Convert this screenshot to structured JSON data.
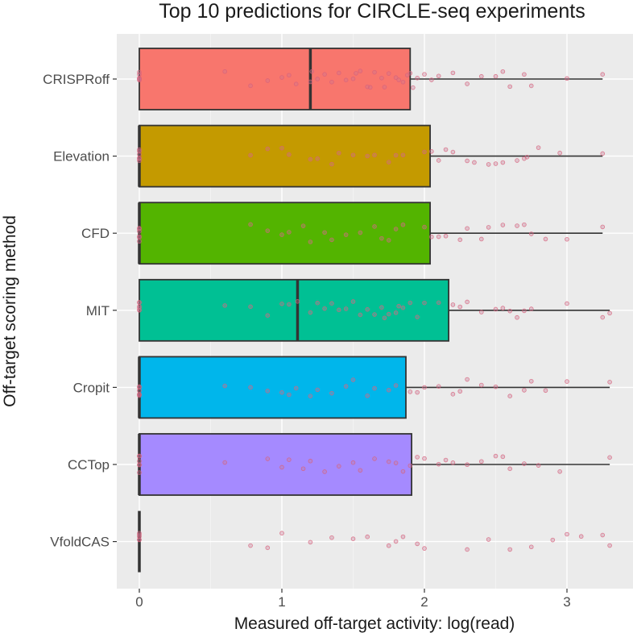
{
  "chart_data": {
    "type": "boxplot",
    "title": "Top 10 predictions for CIRCLE-seq experiments",
    "xlabel": "Measured off-target activity: log(read)",
    "ylabel": "Off-target scoring method",
    "xlim": [
      -0.15,
      3.45
    ],
    "x_ticks": [
      0,
      1,
      2,
      3
    ],
    "x_tick_labels": [
      "0",
      "1",
      "2",
      "3"
    ],
    "grid": true,
    "series": [
      {
        "name": "CRISPRoff",
        "color": "#f8766d",
        "q1": 0,
        "median": 1.2,
        "q3": 1.9,
        "whisker_low": 0,
        "whisker_high": 3.25,
        "points": [
          0,
          0,
          0,
          0,
          0,
          0,
          0.6,
          0.78,
          0.9,
          1.0,
          1.05,
          1.1,
          1.2,
          1.21,
          1.25,
          1.3,
          1.35,
          1.4,
          1.45,
          1.5,
          1.52,
          1.55,
          1.6,
          1.62,
          1.65,
          1.7,
          1.72,
          1.75,
          1.8,
          1.82,
          1.85,
          1.88,
          1.9,
          1.92,
          1.95,
          2.0,
          2.05,
          2.1,
          2.2,
          2.3,
          2.4,
          2.5,
          2.55,
          2.6,
          2.7,
          2.75,
          3.0,
          3.25
        ]
      },
      {
        "name": "Elevation",
        "color": "#c49a00",
        "q1": 0,
        "median": 0,
        "q3": 2.04,
        "whisker_low": 0,
        "whisker_high": 3.25,
        "points": [
          0,
          0,
          0,
          0,
          0,
          0,
          0.78,
          0.9,
          1.0,
          1.05,
          1.2,
          1.25,
          1.35,
          1.4,
          1.5,
          1.6,
          1.65,
          1.75,
          1.8,
          1.85,
          2.0,
          2.05,
          2.1,
          2.15,
          2.2,
          2.3,
          2.35,
          2.45,
          2.5,
          2.55,
          2.65,
          2.7,
          2.72,
          2.8,
          2.95,
          3.25
        ]
      },
      {
        "name": "CFD",
        "color": "#53b400",
        "q1": 0,
        "median": 0,
        "q3": 2.04,
        "whisker_low": 0,
        "whisker_high": 3.25,
        "points": [
          0,
          0,
          0,
          0,
          0,
          0,
          0.78,
          0.9,
          1.0,
          1.05,
          1.15,
          1.2,
          1.3,
          1.35,
          1.45,
          1.55,
          1.65,
          1.7,
          1.75,
          1.8,
          1.85,
          2.0,
          2.05,
          2.1,
          2.15,
          2.25,
          2.3,
          2.4,
          2.45,
          2.55,
          2.65,
          2.7,
          2.75,
          2.85,
          3.0,
          3.25
        ]
      },
      {
        "name": "MIT",
        "color": "#00c094",
        "q1": 0,
        "median": 1.11,
        "q3": 2.17,
        "whisker_low": 0,
        "whisker_high": 3.3,
        "points": [
          0,
          0,
          0,
          0,
          0,
          0,
          0.6,
          0.78,
          0.9,
          1.0,
          1.05,
          1.11,
          1.2,
          1.25,
          1.3,
          1.35,
          1.4,
          1.45,
          1.5,
          1.55,
          1.6,
          1.65,
          1.7,
          1.72,
          1.75,
          1.8,
          1.82,
          1.85,
          1.9,
          1.95,
          2.0,
          2.1,
          2.2,
          2.25,
          2.3,
          2.4,
          2.5,
          2.55,
          2.6,
          2.65,
          2.7,
          2.75,
          3.0,
          3.25,
          3.3
        ]
      },
      {
        "name": "Cropit",
        "color": "#00b6eb",
        "q1": 0,
        "median": 0,
        "q3": 1.87,
        "whisker_low": 0,
        "whisker_high": 3.3,
        "points": [
          0,
          0,
          0,
          0,
          0,
          0,
          0.6,
          0.78,
          0.9,
          1.0,
          1.05,
          1.1,
          1.2,
          1.25,
          1.35,
          1.45,
          1.5,
          1.6,
          1.65,
          1.75,
          1.8,
          1.9,
          1.95,
          2.0,
          2.1,
          2.2,
          2.25,
          2.3,
          2.4,
          2.5,
          2.6,
          2.7,
          2.75,
          2.85,
          3.0,
          3.3
        ]
      },
      {
        "name": "CCTop",
        "color": "#a58aff",
        "q1": 0,
        "median": 0,
        "q3": 1.91,
        "whisker_low": 0,
        "whisker_high": 3.3,
        "points": [
          0,
          0,
          0,
          0,
          0,
          0,
          0.6,
          0.9,
          1.0,
          1.05,
          1.15,
          1.2,
          1.3,
          1.4,
          1.5,
          1.55,
          1.65,
          1.75,
          1.8,
          1.85,
          1.9,
          1.95,
          2.0,
          2.1,
          2.15,
          2.2,
          2.3,
          2.4,
          2.5,
          2.55,
          2.6,
          2.7,
          2.8,
          2.95,
          3.3
        ]
      },
      {
        "name": "VfoldCAS",
        "color": "#fb61d7",
        "q1": 0,
        "median": 0,
        "q3": 0,
        "whisker_low": 0,
        "whisker_high": 0,
        "points": [
          0,
          0,
          0,
          0,
          0,
          0.78,
          0.9,
          1.0,
          1.2,
          1.35,
          1.5,
          1.6,
          1.75,
          1.8,
          1.85,
          1.95,
          2.0,
          2.3,
          2.45,
          2.6,
          2.75,
          2.9,
          3.0,
          3.1,
          3.25,
          3.3
        ]
      }
    ]
  }
}
